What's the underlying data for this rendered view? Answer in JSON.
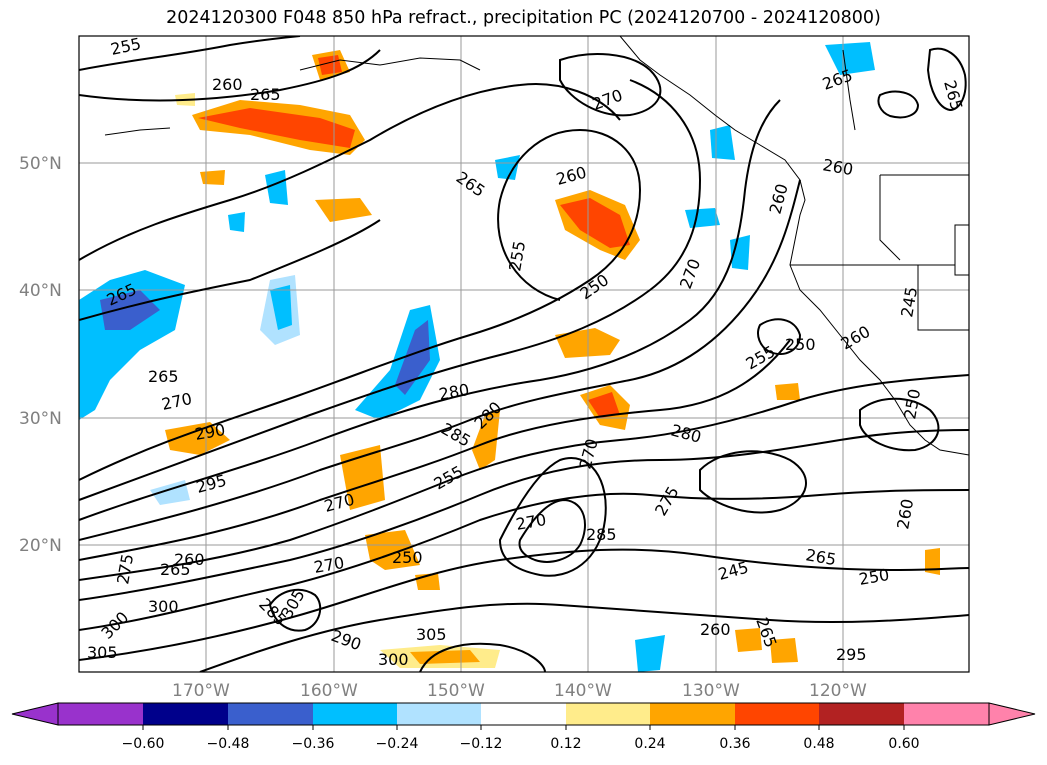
{
  "title": "2024120300 F048 850 hPa refract., precipitation PC (2024120700 - 2024120800)",
  "map": {
    "lat_labels": [
      "50°N",
      "40°N",
      "30°N",
      "20°N"
    ],
    "lon_labels": [
      "170°W",
      "160°W",
      "150°W",
      "140°W",
      "130°W",
      "120°W"
    ],
    "grid_color": "#9a9a9a",
    "label_color": "#808080"
  },
  "contour_labels": [
    "255",
    "260",
    "265",
    "270",
    "260",
    "265",
    "255",
    "260",
    "250",
    "270",
    "265",
    "260",
    "265",
    "265",
    "265",
    "270",
    "290",
    "295",
    "280",
    "285",
    "280",
    "255",
    "280",
    "270",
    "275",
    "270",
    "250",
    "265",
    "285",
    "270",
    "250",
    "250",
    "255",
    "260",
    "245",
    "250",
    "260",
    "245",
    "260",
    "265",
    "275",
    "270",
    "305",
    "300",
    "300",
    "305",
    "260",
    "265",
    "295",
    "300",
    "305",
    "285",
    "290"
  ],
  "colorbar": {
    "ticks": [
      "−0.60",
      "−0.48",
      "−0.36",
      "−0.24",
      "−0.12",
      "0.12",
      "0.24",
      "0.36",
      "0.48",
      "0.60"
    ],
    "colors": [
      "#9932cc",
      "#00008b",
      "#3a5fcd",
      "#00bfff",
      "#b0e2ff",
      "#ffffff",
      "#ffec8b",
      "#ffa500",
      "#ff4500",
      "#b22222",
      "#ff82ab"
    ],
    "extend": "both"
  }
}
